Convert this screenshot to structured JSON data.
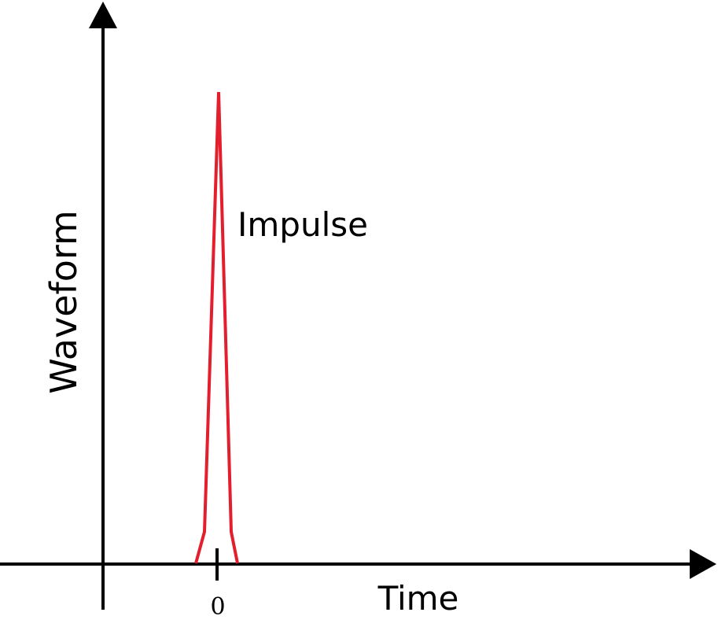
{
  "labels": {
    "y_axis": "Waveform",
    "x_axis": "Time",
    "tick_zero": "0",
    "signal": "Impulse"
  },
  "colors": {
    "signal": "#e31e2d",
    "axes": "#000000"
  }
}
